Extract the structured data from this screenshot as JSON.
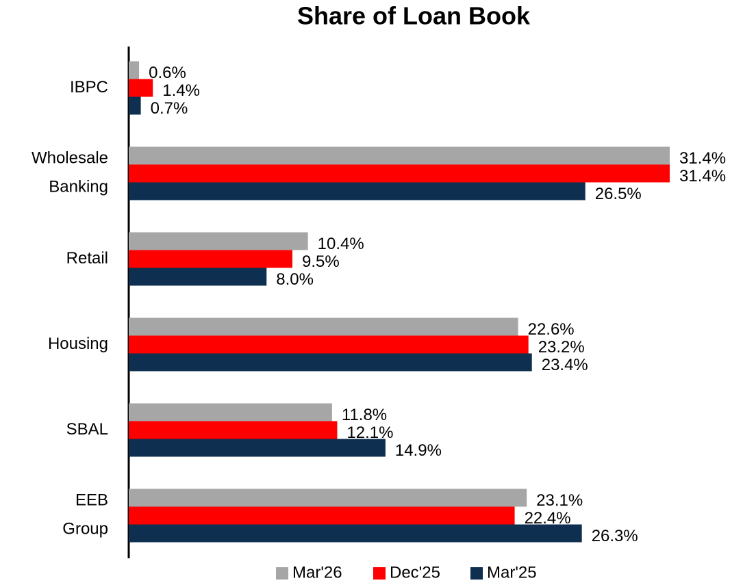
{
  "chart_data": {
    "type": "bar",
    "orientation": "horizontal",
    "title": "Share of Loan Book",
    "categories": [
      "IBPC",
      "Wholesale Banking",
      "Retail",
      "Housing",
      "SBAL",
      "EEB Group"
    ],
    "series": [
      {
        "name": "Mar'26",
        "color": "#a6a6a6",
        "values": [
          0.6,
          31.4,
          10.4,
          22.6,
          11.8,
          23.1
        ],
        "value_labels": [
          "0.6%",
          "31.4%",
          "10.4%",
          "22.6%",
          "11.8%",
          "23.1%"
        ]
      },
      {
        "name": "Dec'25",
        "color": "#ff0000",
        "values": [
          1.4,
          31.4,
          9.5,
          23.2,
          12.1,
          22.4
        ],
        "value_labels": [
          "1.4%",
          "31.4%",
          "9.5%",
          "23.2%",
          "12.1%",
          "22.4%"
        ]
      },
      {
        "name": "Mar'25",
        "color": "#0e2f4f",
        "values": [
          0.7,
          26.5,
          8.0,
          23.4,
          14.9,
          26.3
        ],
        "value_labels": [
          "0.7%",
          "26.5%",
          "8.0%",
          "23.4%",
          "14.9%",
          "26.3%"
        ]
      }
    ],
    "legend": "bottom",
    "grid": false
  }
}
